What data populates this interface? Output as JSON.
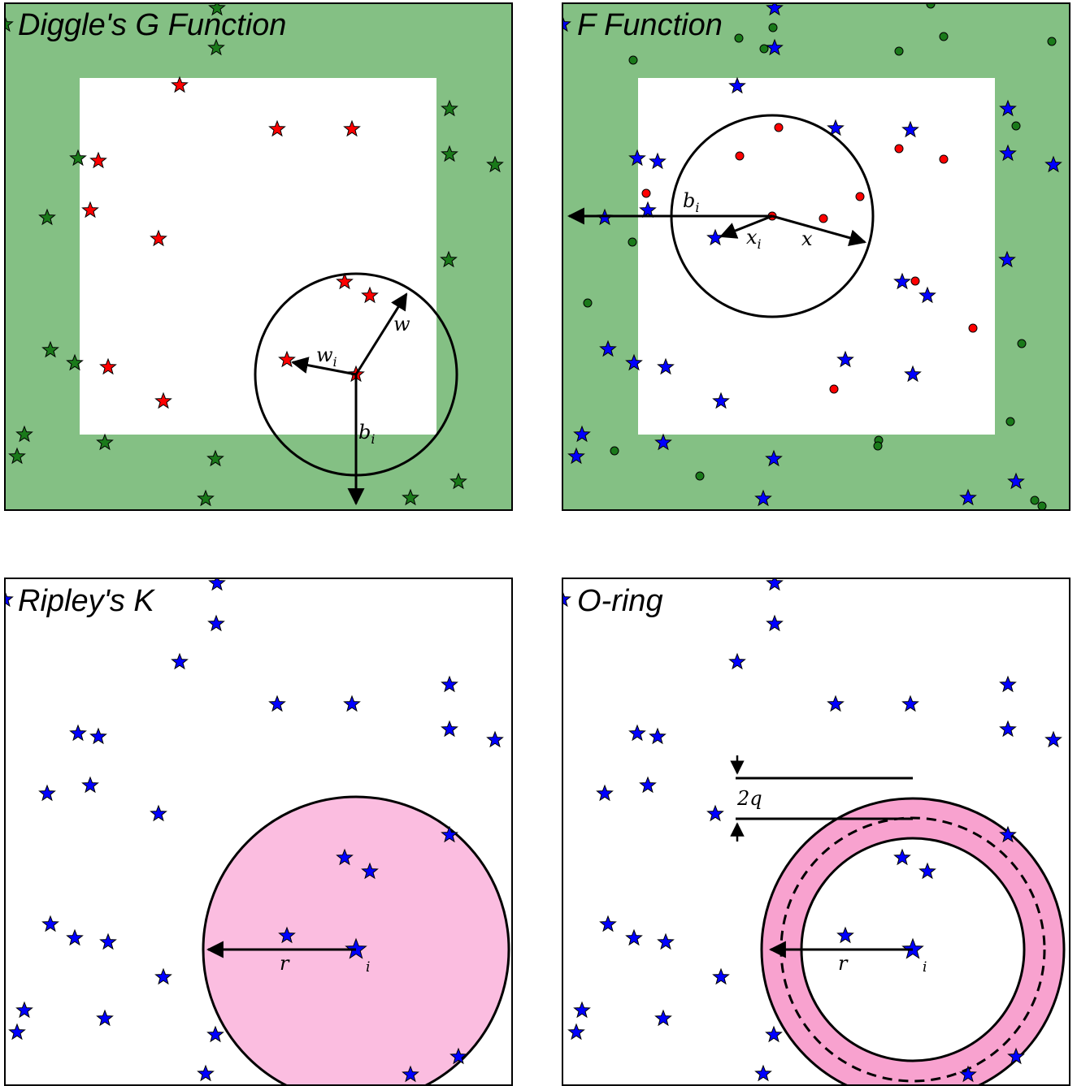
{
  "colors": {
    "buffer_green": "#84c084",
    "pink_fill": "#fbbde0",
    "ring_pink": "#f8a2cf",
    "star_red": "#ff0000",
    "star_green": "#1a7a1a",
    "star_blue": "#0000ff",
    "dot_red": "#ff0000",
    "dot_green": "#1a7a1a"
  },
  "panels": [
    {
      "id": "g",
      "title": "Diggle's G Function",
      "labels": {
        "w_i": "w",
        "w_i_sub": "i",
        "w": "w",
        "b_i": "b",
        "b_i_sub": "i"
      }
    },
    {
      "id": "f",
      "title": "F Function",
      "labels": {
        "b_i": "b",
        "b_i_sub": "i",
        "x_i": "x",
        "x_i_sub": "i",
        "x": "x"
      }
    },
    {
      "id": "k",
      "title": "Ripley's K",
      "labels": {
        "r": "r",
        "i": "i"
      }
    },
    {
      "id": "o",
      "title": "O-ring",
      "labels": {
        "r": "r",
        "i": "i",
        "two_q": "2q"
      }
    }
  ]
}
